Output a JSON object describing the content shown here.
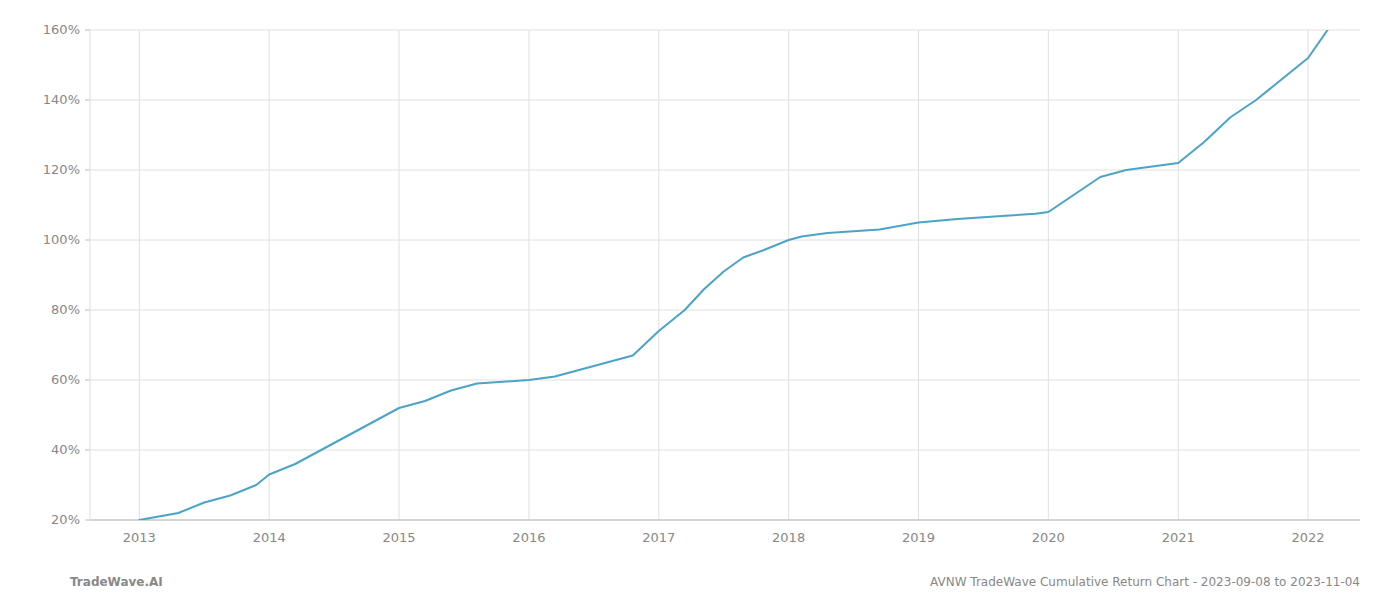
{
  "chart_data": {
    "type": "line",
    "x": [
      2013.0,
      2013.15,
      2013.3,
      2013.5,
      2013.7,
      2013.9,
      2014.0,
      2014.2,
      2014.4,
      2014.6,
      2014.8,
      2015.0,
      2015.1,
      2015.2,
      2015.4,
      2015.6,
      2015.8,
      2016.0,
      2016.2,
      2016.4,
      2016.6,
      2016.8,
      2017.0,
      2017.1,
      2017.2,
      2017.35,
      2017.5,
      2017.65,
      2017.8,
      2018.0,
      2018.1,
      2018.2,
      2018.3,
      2018.5,
      2018.7,
      2019.0,
      2019.15,
      2019.3,
      2019.5,
      2019.7,
      2019.9,
      2020.0,
      2020.2,
      2020.4,
      2020.6,
      2020.8,
      2021.0,
      2021.2,
      2021.4,
      2021.6,
      2021.8,
      2022.0,
      2022.15
    ],
    "values": [
      20,
      21,
      22,
      25,
      27,
      30,
      33,
      36,
      40,
      44,
      48,
      52,
      53,
      54,
      57,
      59,
      59.5,
      60,
      61,
      63,
      65,
      67,
      74,
      77,
      80,
      86,
      91,
      95,
      97,
      100,
      101,
      101.5,
      102,
      102.5,
      103,
      105,
      105.5,
      106,
      106.5,
      107,
      107.5,
      108,
      113,
      118,
      120,
      121,
      122,
      128,
      135,
      140,
      146,
      152,
      160
    ],
    "color": "#4ca3c8",
    "xlim": [
      2012.62,
      2022.4
    ],
    "xticks": [
      2013,
      2014,
      2015,
      2016,
      2017,
      2018,
      2019,
      2020,
      2021,
      2022
    ],
    "ylim": [
      20,
      160
    ],
    "yticks": [
      {
        "value": 20,
        "label": "20%"
      },
      {
        "value": 40,
        "label": "40%"
      },
      {
        "value": 60,
        "label": "60%"
      },
      {
        "value": 80,
        "label": "80%"
      },
      {
        "value": 100,
        "label": "100%"
      },
      {
        "value": 120,
        "label": "120%"
      },
      {
        "value": 140,
        "label": "140%"
      },
      {
        "value": 160,
        "label": "160%"
      }
    ],
    "grid": true,
    "annotations": [
      "TradeWave.AI",
      "AVNW TradeWave Cumulative Return Chart - 2023-09-08 to 2023-11-04"
    ]
  }
}
